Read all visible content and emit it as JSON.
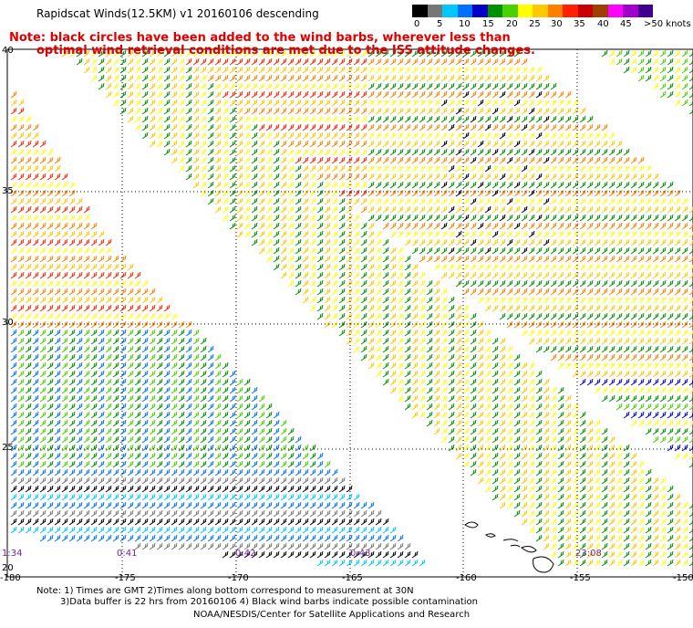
{
  "header": {
    "title": "Rapidscat Winds(12.5KM) v1 20160106 descending",
    "note_line1": "Note: black circles have been added to the wind barbs, wherever less than",
    "note_line2": "optimal wind retrieval conditions are met due to the ISS attitude changes."
  },
  "legend": {
    "colors": [
      "#000000",
      "#777777",
      "#00c8ff",
      "#0070ff",
      "#0000c8",
      "#009000",
      "#4bd000",
      "#ffff00",
      "#ffc800",
      "#ff8000",
      "#ff2000",
      "#c80000",
      "#a04000",
      "#ff00ff",
      "#a000c8",
      "#400090"
    ],
    "labels": [
      "0",
      "5",
      "10",
      "15",
      "20",
      "25",
      "30",
      "35",
      "40",
      "45",
      ">50 knots"
    ]
  },
  "axes": {
    "lat_labels": [
      "40",
      "35",
      "30",
      "25",
      "20"
    ],
    "lon_labels": [
      "-180",
      "-175",
      "-170",
      "-165",
      "-160",
      "-155",
      "-150"
    ]
  },
  "times": [
    "1:34",
    "0:41",
    "0:42",
    "0:43",
    "23:08"
  ],
  "footer": {
    "line1": "Note: 1) Times are GMT 2)Times along bottom correspond to measurement at 30N",
    "line2": "3)Data buffer is 22 hrs from 20160106 4) Black wind barbs indicate possible contamination",
    "line3": "NOAA/NESDIS/Center for Satellite Applications and Research"
  }
}
